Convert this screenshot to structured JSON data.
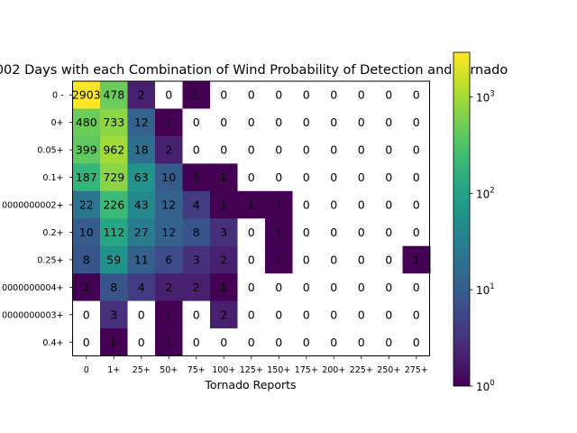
{
  "chart_data": {
    "type": "heatmap",
    "title": "002 Days with each Combination of Wind Probability of Detection and Tornado",
    "xlabel": "Tornado Reports",
    "ylabel": "",
    "x_categories": [
      "0",
      "1+",
      "25+",
      "50+",
      "75+",
      "100+",
      "125+",
      "150+",
      "175+",
      "200+",
      "225+",
      "250+",
      "275+"
    ],
    "y_categories": [
      "0 -",
      "0+",
      "0.05+",
      "0.1+",
      "0000000002+",
      "0.2+",
      "0.25+",
      "0000000004+",
      "0000000003+",
      "0.4+"
    ],
    "values": [
      [
        2903,
        478,
        2,
        0,
        1,
        0,
        0,
        0,
        0,
        0,
        0,
        0,
        0
      ],
      [
        480,
        733,
        12,
        1,
        0,
        0,
        0,
        0,
        0,
        0,
        0,
        0,
        0
      ],
      [
        399,
        962,
        18,
        2,
        0,
        0,
        0,
        0,
        0,
        0,
        0,
        0,
        0
      ],
      [
        187,
        729,
        63,
        10,
        1,
        1,
        0,
        0,
        0,
        0,
        0,
        0,
        0
      ],
      [
        22,
        226,
        43,
        12,
        4,
        1,
        1,
        1,
        0,
        0,
        0,
        0,
        0
      ],
      [
        10,
        112,
        27,
        12,
        8,
        3,
        0,
        1,
        0,
        0,
        0,
        0,
        0
      ],
      [
        8,
        59,
        11,
        6,
        3,
        2,
        0,
        1,
        0,
        0,
        0,
        0,
        1
      ],
      [
        1,
        8,
        4,
        2,
        2,
        1,
        0,
        0,
        0,
        0,
        0,
        0,
        0
      ],
      [
        0,
        3,
        0,
        1,
        0,
        2,
        0,
        0,
        0,
        0,
        0,
        0,
        0
      ],
      [
        0,
        1,
        0,
        1,
        0,
        0,
        0,
        0,
        0,
        0,
        0,
        0,
        0
      ]
    ],
    "colorscale": "viridis",
    "color_scale_type": "log",
    "zero_color": "#ffffff",
    "colorbar": {
      "range": [
        1,
        2903
      ],
      "ticks": [
        {
          "value": 1,
          "base": "10",
          "exp": "0"
        },
        {
          "value": 10,
          "base": "10",
          "exp": "1"
        },
        {
          "value": 100,
          "base": "10",
          "exp": "2"
        },
        {
          "value": 1000,
          "base": "10",
          "exp": "3"
        }
      ]
    },
    "grid": false
  }
}
